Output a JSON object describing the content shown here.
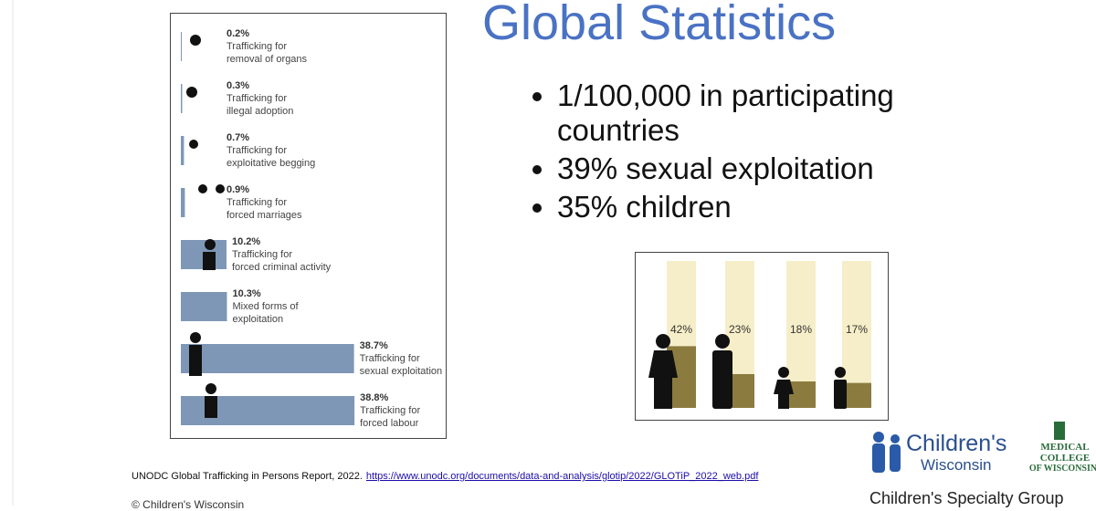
{
  "title": "Global Statistics",
  "bullets": [
    "1/100,000 in participating countries",
    "39% sexual exploitation",
    "35% children"
  ],
  "source": {
    "text": "UNODC Global Trafficking in Persons Report, 2022.",
    "url": "https://www.unodc.org/documents/data-and-analysis/glotip/2022/GLOTiP_2022_web.pdf"
  },
  "copyright": "© Children's Wisconsin",
  "logos": {
    "childrens": [
      "Children's",
      "Wisconsin"
    ],
    "mcw": [
      "MEDICAL",
      "COLLEGE",
      "OF WISCONSIN"
    ],
    "group": "Children's Specialty Group"
  },
  "chart_data": [
    {
      "type": "hbar",
      "categories": [
        "Trafficking for\nremoval of organs",
        "Trafficking for\nillegal adoption",
        "Trafficking for\nexploitative begging",
        "Trafficking for\nforced marriages",
        "Trafficking for\nforced criminal activity",
        "Mixed forms of\nexploitation",
        "Trafficking for\nsexual exploitation",
        "Trafficking for\nforced labour"
      ],
      "values": [
        0.2,
        0.3,
        0.7,
        0.9,
        10.2,
        10.3,
        38.7,
        38.8
      ],
      "value_labels": [
        "0.2%",
        "0.3%",
        "0.7%",
        "0.9%",
        "10.2%",
        "10.3%",
        "38.7%",
        "38.8%"
      ],
      "color": "#7e97b6"
    },
    {
      "type": "bar",
      "values": [
        42,
        23,
        18,
        17
      ],
      "value_labels": [
        "42%",
        "23%",
        "18%",
        "17%"
      ],
      "color": "#8b7b3f",
      "background_color": "#f6eec8",
      "ylim": [
        0,
        100
      ]
    }
  ]
}
